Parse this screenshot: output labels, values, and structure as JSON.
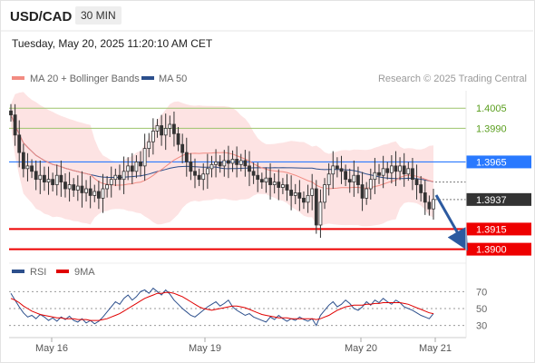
{
  "header": {
    "pair": "USD/CAD",
    "timeframe": "30 MIN",
    "datetime": "Tuesday, May 20, 2025 11:20:10 AM CET"
  },
  "legend": {
    "ma20": {
      "label": "MA 20 + Bollinger Bands",
      "color": "#f28b82"
    },
    "ma50": {
      "label": "MA 50",
      "color": "#2c4f8c"
    },
    "rsi": {
      "label": "RSI",
      "color": "#2c4f8c"
    },
    "ma9": {
      "label": "9MA",
      "color": "#e00000"
    }
  },
  "credit": "Research © 2025 Trading Central",
  "colors": {
    "candle": "#333333",
    "support": "#ee0000",
    "resistance_blue": "#2979ff",
    "green_line": "#9dc46c",
    "band_fill": "#fde3e3",
    "arrow": "#2c5aa0"
  },
  "chart_data": [
    {
      "type": "candlestick",
      "x_ticks": [
        "May 16",
        "May 19",
        "May 20",
        "May 21"
      ],
      "ylim": [
        1.3895,
        1.4018
      ],
      "levels": [
        {
          "label": "1.4005",
          "value": 1.4005,
          "kind": "resistance",
          "color": "#5a9e1e"
        },
        {
          "label": "1.3990",
          "value": 1.399,
          "kind": "resistance",
          "color": "#5a9e1e"
        },
        {
          "label": "1.3965",
          "value": 1.3965,
          "kind": "pivot",
          "color": "#2979ff"
        },
        {
          "label": "1.3937",
          "value": 1.3937,
          "kind": "last",
          "color": "#333333"
        },
        {
          "label": "1.3915",
          "value": 1.3915,
          "kind": "support",
          "color": "#ee0000"
        },
        {
          "label": "1.3900",
          "value": 1.39,
          "kind": "support",
          "color": "#ee0000"
        }
      ],
      "closes": [
        1.4,
        1.3985,
        1.3972,
        1.396,
        1.3962,
        1.3958,
        1.3952,
        1.3955,
        1.395,
        1.3952,
        1.3948,
        1.3955,
        1.395,
        1.3945,
        1.3948,
        1.3944,
        1.3947,
        1.3942,
        1.3945,
        1.394,
        1.3943,
        1.3938,
        1.3945,
        1.3948,
        1.3952,
        1.3955,
        1.3952,
        1.3958,
        1.3962,
        1.3958,
        1.3965,
        1.3962,
        1.3975,
        1.398,
        1.3988,
        1.3992,
        1.3985,
        1.399,
        1.3993,
        1.3986,
        1.3978,
        1.3972,
        1.3965,
        1.3958,
        1.3955,
        1.3952,
        1.3956,
        1.396,
        1.3963,
        1.3965,
        1.3962,
        1.3966,
        1.3964,
        1.3967,
        1.3963,
        1.3966,
        1.3962,
        1.3958,
        1.3955,
        1.3952,
        1.395,
        1.3953,
        1.3948,
        1.395,
        1.3946,
        1.3948,
        1.3944,
        1.394,
        1.3942,
        1.3938,
        1.3935,
        1.394,
        1.3945,
        1.3918,
        1.3935,
        1.3948,
        1.3956,
        1.3962,
        1.396,
        1.3958,
        1.3952,
        1.395,
        1.3955,
        1.3948,
        1.3938,
        1.3945,
        1.3952,
        1.3957,
        1.3955,
        1.396,
        1.3957,
        1.3962,
        1.3958,
        1.3962,
        1.3956,
        1.396,
        1.3952,
        1.3948,
        1.3942,
        1.3935,
        1.393,
        1.3937
      ],
      "series": [
        {
          "name": "MA 20 + Bollinger Bands",
          "color": "#f28b82"
        },
        {
          "name": "MA 50",
          "color": "#2c4f8c"
        }
      ]
    },
    {
      "type": "line",
      "ylim": [
        20,
        80
      ],
      "y_ticks": [
        70,
        50,
        30
      ],
      "series": [
        {
          "name": "RSI",
          "color": "#2c4f8c",
          "values": [
            68,
            60,
            52,
            45,
            40,
            42,
            38,
            43,
            40,
            36,
            39,
            35,
            40,
            37,
            41,
            36,
            34,
            38,
            33,
            36,
            32,
            35,
            40,
            46,
            52,
            58,
            55,
            62,
            66,
            60,
            64,
            70,
            72,
            68,
            74,
            70,
            66,
            72,
            67,
            60,
            55,
            50,
            46,
            42,
            40,
            44,
            48,
            52,
            55,
            58,
            53,
            56,
            60,
            52,
            48,
            45,
            42,
            44,
            40,
            38,
            36,
            34,
            40,
            37,
            42,
            38,
            35,
            38,
            36,
            40,
            37,
            35,
            38,
            30,
            42,
            48,
            54,
            58,
            52,
            55,
            60,
            56,
            50,
            48,
            52,
            58,
            54,
            60,
            57,
            62,
            58,
            55,
            60,
            57,
            52,
            50,
            48,
            45,
            42,
            40,
            38,
            44
          ]
        },
        {
          "name": "9MA",
          "color": "#e00000",
          "values": [
            62,
            60,
            57,
            53,
            50,
            47,
            45,
            43,
            42,
            41,
            40,
            39,
            39,
            38,
            38,
            38,
            37,
            37,
            37,
            36,
            36,
            36,
            37,
            38,
            40,
            42,
            44,
            47,
            50,
            53,
            56,
            59,
            62,
            64,
            66,
            68,
            68,
            69,
            69,
            68,
            66,
            64,
            61,
            58,
            55,
            52,
            50,
            49,
            48,
            49,
            50,
            51,
            52,
            53,
            53,
            52,
            51,
            49,
            47,
            45,
            43,
            42,
            41,
            40,
            39,
            39,
            39,
            38,
            38,
            38,
            38,
            38,
            38,
            37,
            38,
            40,
            42,
            45,
            48,
            50,
            52,
            53,
            54,
            54,
            54,
            55,
            55,
            56,
            56,
            57,
            57,
            57,
            57,
            57,
            56,
            55,
            53,
            51,
            49,
            47,
            45,
            44
          ]
        }
      ]
    }
  ]
}
